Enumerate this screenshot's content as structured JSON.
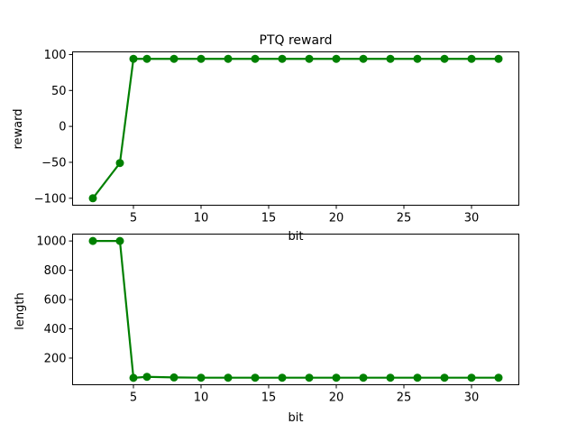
{
  "chart_data": [
    {
      "type": "line",
      "title": "PTQ reward",
      "xlabel": "bit",
      "ylabel": "reward",
      "x": [
        2,
        4,
        5,
        6,
        8,
        10,
        12,
        14,
        16,
        18,
        20,
        22,
        24,
        26,
        28,
        30,
        32
      ],
      "series": [
        {
          "values": [
            -100,
            -51,
            94,
            94,
            94,
            94,
            94,
            94,
            94,
            94,
            94,
            94,
            94,
            94,
            94,
            94,
            94
          ]
        }
      ],
      "xticks": [
        5,
        10,
        15,
        20,
        25,
        30
      ],
      "yticks": [
        -100,
        -50,
        0,
        50,
        100
      ],
      "xlim": [
        0.5,
        33.5
      ],
      "ylim": [
        -109.7,
        103.7
      ],
      "color": "#008000",
      "marker": "circle",
      "grid": false
    },
    {
      "type": "line",
      "title": "",
      "xlabel": "bit",
      "ylabel": "length",
      "x": [
        2,
        4,
        5,
        6,
        8,
        10,
        12,
        14,
        16,
        18,
        20,
        22,
        24,
        26,
        28,
        30,
        32
      ],
      "series": [
        {
          "values": [
            1000,
            1000,
            65,
            72,
            68,
            66,
            66,
            66,
            66,
            66,
            66,
            66,
            66,
            66,
            66,
            66,
            66
          ]
        }
      ],
      "xticks": [
        5,
        10,
        15,
        20,
        25,
        30
      ],
      "yticks": [
        200,
        400,
        600,
        800,
        1000
      ],
      "xlim": [
        0.5,
        33.5
      ],
      "ylim": [
        18,
        1047
      ],
      "color": "#008000",
      "marker": "circle",
      "grid": false
    }
  ]
}
